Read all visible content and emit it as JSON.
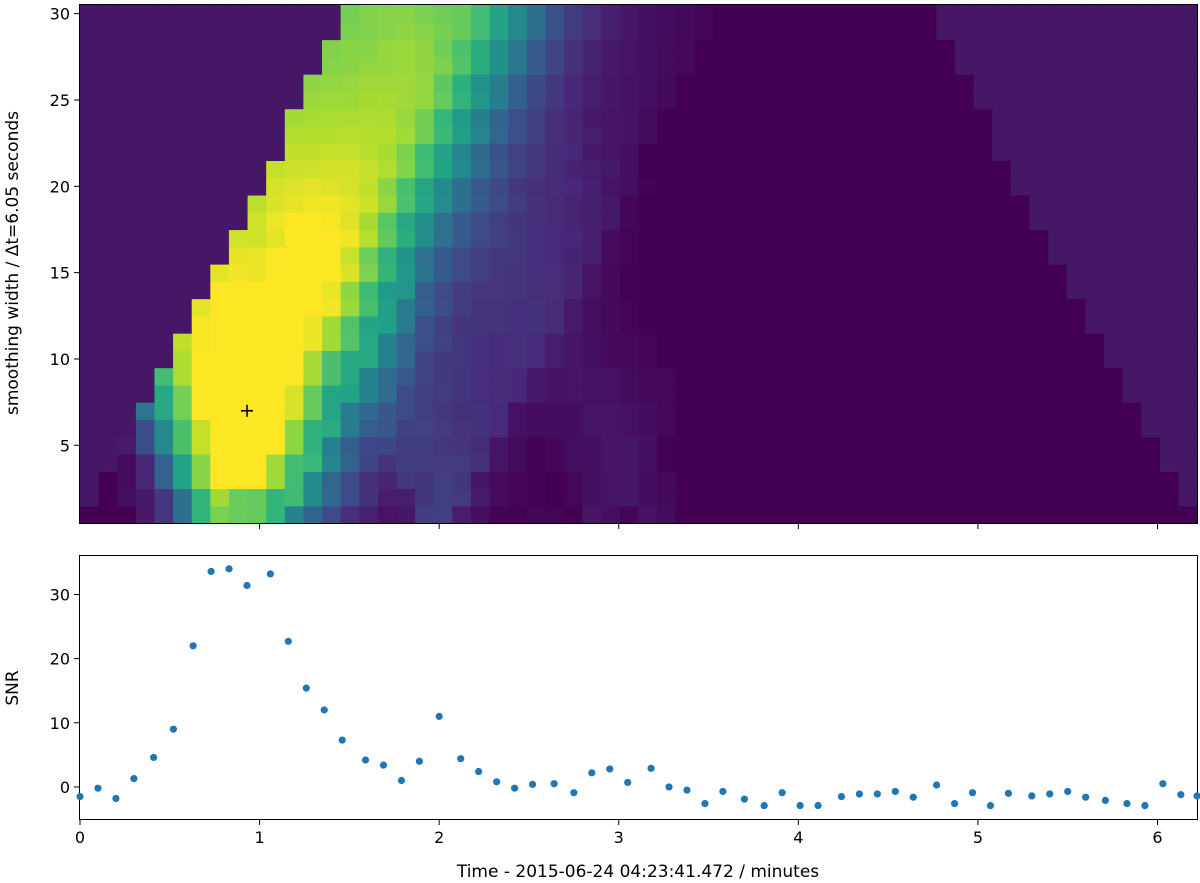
{
  "chart_data": [
    {
      "type": "heatmap",
      "title": "",
      "xlabel": "",
      "ylabel": "smoothing width / Δt=6.05 seconds",
      "xlim": [
        0,
        6.22
      ],
      "ylim": [
        0.5,
        30.5
      ],
      "yticks": [
        5,
        10,
        15,
        20,
        25,
        30
      ],
      "xticks": [
        1,
        2,
        3,
        4,
        5,
        6
      ],
      "colormap": "viridis",
      "grid": false,
      "columns": 60,
      "rows": 30,
      "marker": {
        "symbol": "+",
        "x": 0.93,
        "y": 7
      },
      "colors": {
        "frame": "#000000",
        "marker": "#000000"
      }
    },
    {
      "type": "scatter",
      "title": "",
      "xlabel": "Time - 2015-06-24 04:23:41.472 / minutes",
      "ylabel": "SNR",
      "xlim": [
        0,
        6.22
      ],
      "ylim": [
        -5,
        36
      ],
      "xticks": [
        0,
        1,
        2,
        3,
        4,
        5,
        6
      ],
      "yticks": [
        0,
        10,
        20,
        30
      ],
      "grid": false,
      "series": [
        {
          "color": "#1f77b4",
          "x": [
            0.0,
            0.1,
            0.2,
            0.3,
            0.41,
            0.52,
            0.63,
            0.73,
            0.83,
            0.93,
            1.06,
            1.16,
            1.26,
            1.36,
            1.46,
            1.59,
            1.69,
            1.79,
            1.89,
            2.0,
            2.12,
            2.22,
            2.32,
            2.42,
            2.52,
            2.64,
            2.75,
            2.85,
            2.95,
            3.05,
            3.18,
            3.28,
            3.38,
            3.48,
            3.58,
            3.7,
            3.81,
            3.91,
            4.01,
            4.11,
            4.24,
            4.34,
            4.44,
            4.54,
            4.64,
            4.77,
            4.87,
            4.97,
            5.07,
            5.17,
            5.3,
            5.4,
            5.5,
            5.6,
            5.71,
            5.83,
            5.93,
            6.03,
            6.13,
            6.22
          ],
          "y": [
            -1.5,
            -0.2,
            -1.8,
            1.3,
            4.6,
            9.0,
            22.0,
            33.6,
            34.0,
            31.4,
            33.2,
            22.7,
            15.4,
            12.0,
            7.3,
            4.2,
            3.4,
            1.0,
            4.0,
            11.0,
            4.4,
            2.4,
            0.8,
            -0.2,
            0.4,
            0.5,
            -0.9,
            2.2,
            2.8,
            0.7,
            2.9,
            0.0,
            -0.5,
            -2.6,
            -0.7,
            -1.9,
            -2.9,
            -0.9,
            -2.9,
            -2.9,
            -1.5,
            -1.1,
            -1.1,
            -0.7,
            -1.6,
            0.3,
            -2.6,
            -0.9,
            -2.9,
            -1.0,
            -1.4,
            -1.1,
            -0.7,
            -1.6,
            -2.1,
            -2.6,
            -2.9,
            0.5,
            -1.2,
            -1.4
          ]
        }
      ]
    }
  ]
}
